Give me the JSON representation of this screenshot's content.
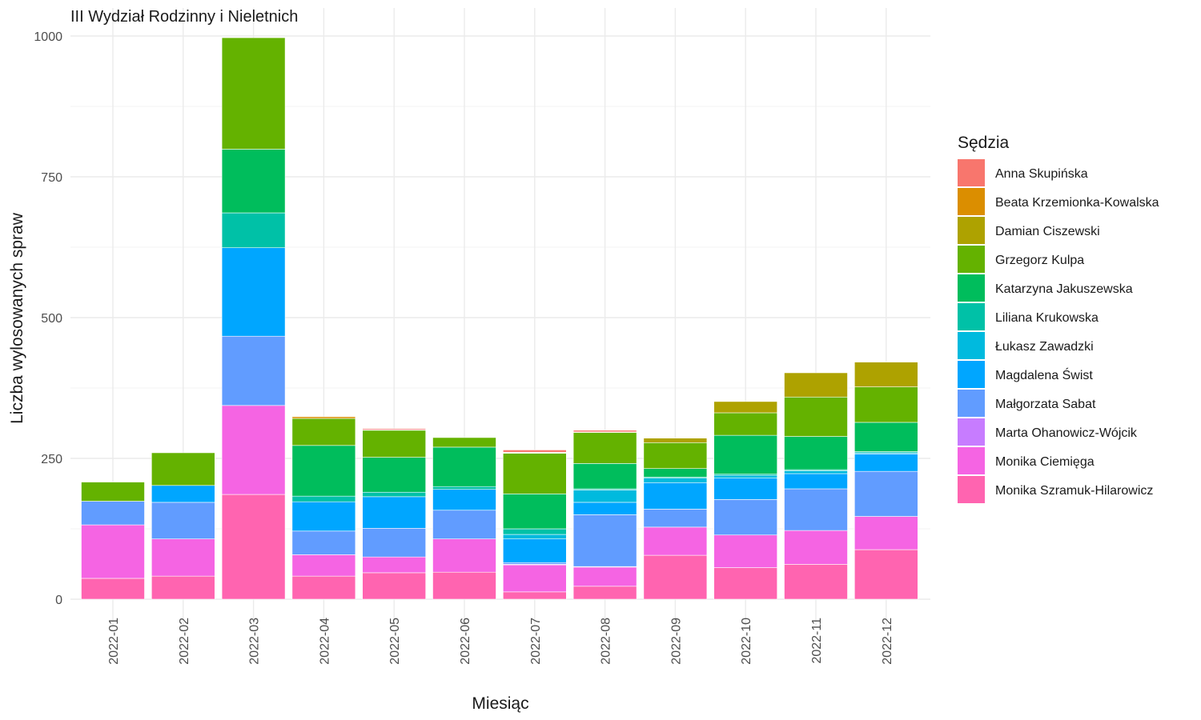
{
  "chart_data": {
    "type": "bar",
    "stacked": true,
    "title": "III Wydział Rodzinny i Nieletnich",
    "xlabel": "Miesiąc",
    "ylabel": "Liczba wylosowanych spraw",
    "ylim": [
      0,
      1000
    ],
    "yticks": [
      0,
      250,
      500,
      750,
      1000
    ],
    "grid": true,
    "legend": {
      "title": "Sędzia",
      "position": "right"
    },
    "categories": [
      "2022-01",
      "2022-02",
      "2022-03",
      "2022-04",
      "2022-05",
      "2022-06",
      "2022-07",
      "2022-08",
      "2022-09",
      "2022-10",
      "2022-11",
      "2022-12"
    ],
    "series": [
      {
        "name": "Anna Skupińska",
        "color": "#F8766D",
        "values": [
          0,
          0,
          0,
          0,
          2,
          0,
          4,
          3,
          0,
          0,
          0,
          0
        ]
      },
      {
        "name": "Beata Krzemionka-Kowalska",
        "color": "#DB8E00",
        "values": [
          0,
          0,
          0,
          3,
          1,
          0,
          1,
          1,
          0,
          0,
          0,
          0
        ]
      },
      {
        "name": "Damian Ciszewski",
        "color": "#AEA200",
        "values": [
          0,
          0,
          0,
          0,
          0,
          0,
          1,
          0,
          8,
          20,
          43,
          44
        ]
      },
      {
        "name": "Grzegorz Kulpa",
        "color": "#64B200",
        "values": [
          34,
          58,
          198,
          48,
          48,
          17,
          72,
          55,
          46,
          40,
          70,
          63
        ]
      },
      {
        "name": "Katarzyna Jakuszewska",
        "color": "#00BD5C",
        "values": [
          0,
          0,
          113,
          90,
          62,
          70,
          62,
          45,
          15,
          69,
          59,
          52
        ]
      },
      {
        "name": "Liliana Krukowska",
        "color": "#00C1A7",
        "values": [
          0,
          0,
          62,
          10,
          8,
          5,
          10,
          2,
          2,
          2,
          2,
          2
        ]
      },
      {
        "name": "Łukasz Zawadzki",
        "color": "#00BADE",
        "values": [
          0,
          0,
          0,
          0,
          0,
          0,
          8,
          22,
          8,
          5,
          5,
          2
        ]
      },
      {
        "name": "Magdalena Świst",
        "color": "#00A6FF",
        "values": [
          0,
          30,
          157,
          52,
          56,
          37,
          42,
          22,
          47,
          38,
          27,
          31
        ]
      },
      {
        "name": "Małgorzata Sabat",
        "color": "#619CFF",
        "values": [
          42,
          65,
          123,
          42,
          51,
          51,
          3,
          92,
          32,
          63,
          74,
          80
        ]
      },
      {
        "name": "Marta Ohanowicz-Wójcik",
        "color": "#C77CFF",
        "values": [
          0,
          0,
          0,
          0,
          0,
          0,
          1,
          1,
          0,
          0,
          0,
          0
        ]
      },
      {
        "name": "Monika Ciemięga",
        "color": "#F564E3",
        "values": [
          95,
          66,
          158,
          38,
          28,
          59,
          48,
          34,
          50,
          58,
          60,
          59
        ]
      },
      {
        "name": "Monika Szramuk-Hilarowicz",
        "color": "#FF64B0",
        "values": [
          37,
          41,
          186,
          41,
          47,
          48,
          13,
          23,
          78,
          56,
          62,
          88
        ]
      }
    ]
  }
}
